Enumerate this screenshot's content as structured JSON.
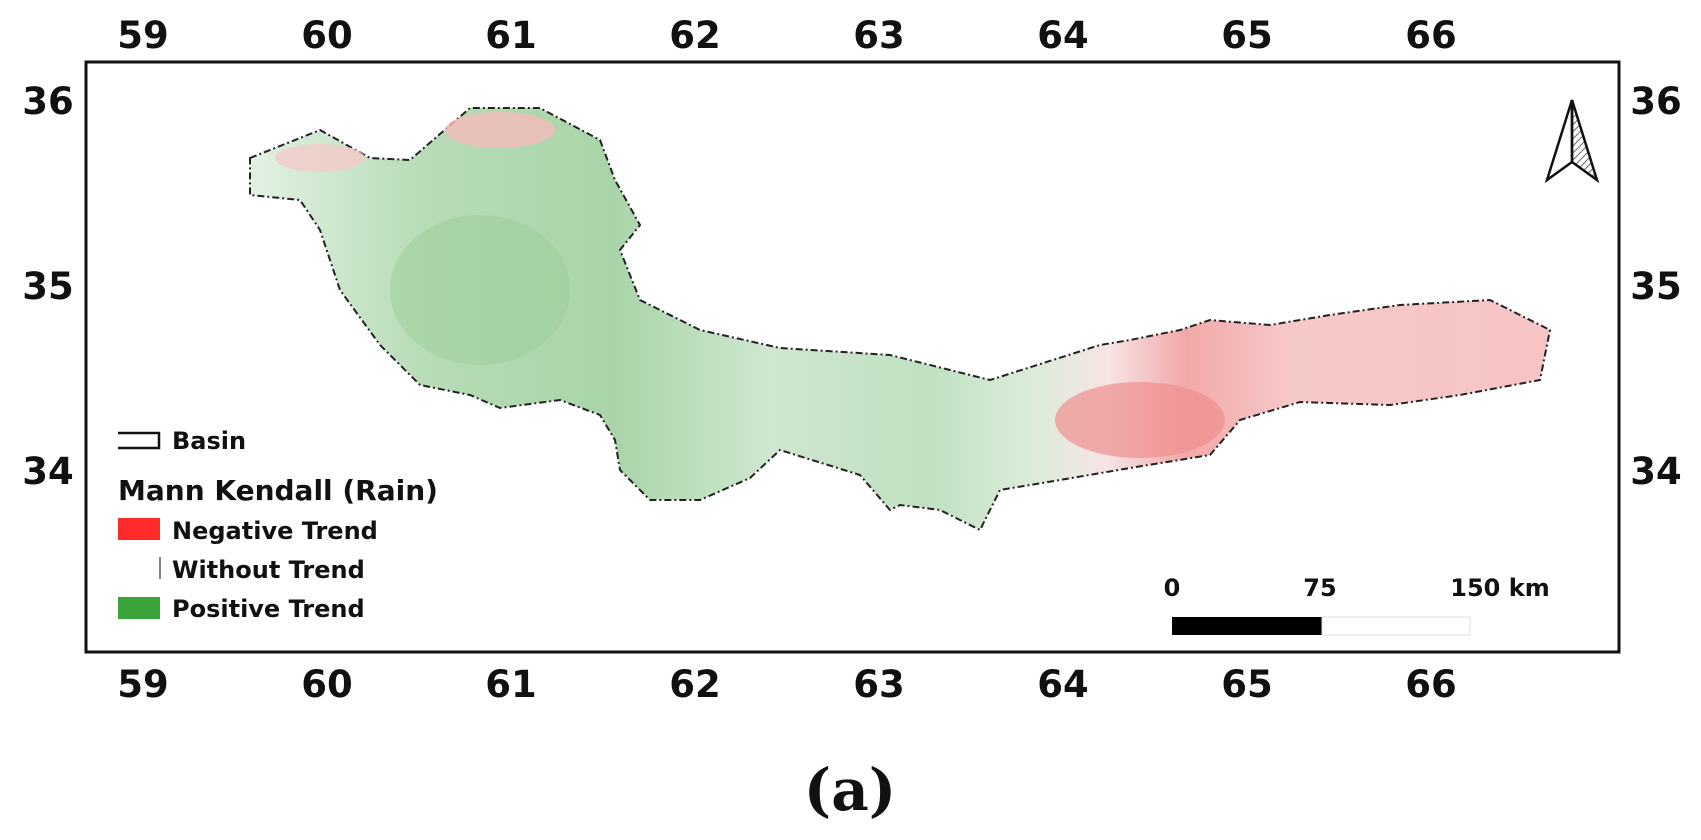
{
  "map": {
    "x_ticks": [
      "59",
      "60",
      "61",
      "62",
      "63",
      "64",
      "65",
      "66"
    ],
    "y_ticks": [
      "36",
      "35",
      "34"
    ],
    "legend": {
      "basin_label": "Basin",
      "title": "Mann Kendall (Rain)",
      "items": [
        {
          "label": "Negative Trend",
          "color": "#ff2a2a"
        },
        {
          "label": "Without Trend",
          "color": "#ffffff"
        },
        {
          "label": "Positive Trend",
          "color": "#3aa33a"
        }
      ]
    },
    "scale_bar": {
      "labels": [
        "0",
        "75",
        "150 km"
      ]
    },
    "north_arrow": "north-arrow-icon",
    "colors": {
      "negative": "#ff2a2a",
      "neutral": "#ffffff",
      "positive": "#3aa33a",
      "frame": "#111111"
    }
  },
  "caption": "(a)"
}
